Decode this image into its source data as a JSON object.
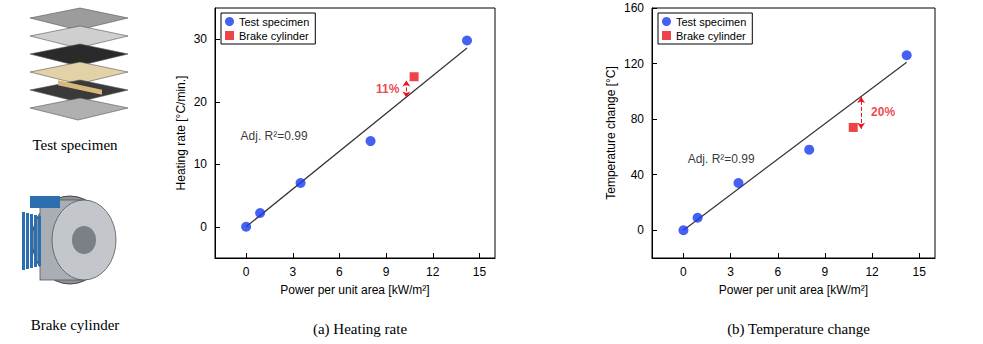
{
  "illustrations": [
    {
      "caption": "Test specimen"
    },
    {
      "caption": "Brake cylinder"
    }
  ],
  "chart_data": [
    {
      "type": "scatter",
      "title": "(a) Heating rate",
      "x_label": "Power per unit area [kW/m²]",
      "y_label": "Heating rate [°C/min.]",
      "xlim": [
        -2,
        16
      ],
      "xticks": [
        0,
        3,
        6,
        9,
        12,
        15
      ],
      "ylim": [
        -5,
        35
      ],
      "yticks": [
        0,
        10,
        20,
        30
      ],
      "grid": false,
      "legend": "upper left",
      "series": [
        {
          "name": "Test specimen",
          "color": "#1638f0",
          "marker": "circle",
          "x": [
            0,
            0.9,
            3.5,
            8.0,
            14.2
          ],
          "values": [
            0,
            2.2,
            7.0,
            13.7,
            29.8
          ]
        },
        {
          "name": "Brake cylinder",
          "color": "#e8141c",
          "marker": "square",
          "x": [
            10.8
          ],
          "values": [
            24.0
          ]
        },
        {
          "type": "line",
          "color": "#333333",
          "line_style": "solid",
          "x": [
            0,
            14.2
          ],
          "values": [
            0,
            28.6
          ]
        }
      ],
      "annotations": [
        {
          "text": "Adj. R²=0.99",
          "x": 1.8,
          "y": 14.5
        },
        {
          "text": "11%",
          "x": 9.1,
          "y": 22.0,
          "color": "#e8141c",
          "bracket": {
            "x": 10.3,
            "y": [
              20.7,
              23.4
            ]
          }
        }
      ]
    },
    {
      "type": "scatter",
      "title": "(b) Temperature change",
      "x_label": "Power per unit area [kW/m²]",
      "y_label": "Temperature change [°C]",
      "xlim": [
        -2,
        16
      ],
      "xticks": [
        0,
        3,
        6,
        9,
        12,
        15
      ],
      "ylim": [
        -20,
        160
      ],
      "yticks": [
        0,
        40,
        80,
        120,
        160
      ],
      "grid": false,
      "legend": "upper left",
      "series": [
        {
          "name": "Test specimen",
          "color": "#1638f0",
          "marker": "circle",
          "x": [
            0,
            0.9,
            3.5,
            8.0,
            14.2
          ],
          "values": [
            0,
            9,
            34,
            58,
            126
          ]
        },
        {
          "name": "Brake cylinder",
          "color": "#e8141c",
          "marker": "square",
          "x": [
            10.8
          ],
          "values": [
            74
          ]
        },
        {
          "type": "line",
          "color": "#333333",
          "line_style": "solid",
          "x": [
            0,
            14.2
          ],
          "values": [
            0,
            121
          ]
        }
      ],
      "annotations": [
        {
          "text": "Adj. R²=0.99",
          "x": 2.4,
          "y": 51
        },
        {
          "text": "20%",
          "x": 12.7,
          "y": 85,
          "color": "#e8141c",
          "bracket": {
            "x": 11.3,
            "y": [
              73,
              96
            ]
          }
        }
      ]
    }
  ]
}
